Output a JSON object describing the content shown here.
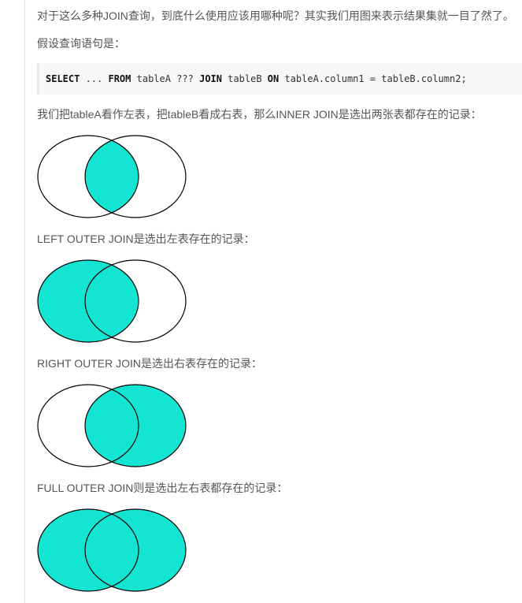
{
  "intro": {
    "line1": "对于这么多种JOIN查询，到底什么使用应该用哪种呢？其实我们用图来表示结果集就一目了然了。",
    "line2": "假设查询语句是："
  },
  "code": {
    "tokens": [
      {
        "text": "SELECT",
        "keyword": true
      },
      {
        "text": " ... ",
        "keyword": false
      },
      {
        "text": "FROM",
        "keyword": true
      },
      {
        "text": " tableA ??? ",
        "keyword": false
      },
      {
        "text": "JOIN",
        "keyword": true
      },
      {
        "text": " tableB ",
        "keyword": false
      },
      {
        "text": "ON",
        "keyword": true
      },
      {
        "text": " tableA.column1 = tableB.column2;",
        "keyword": false
      }
    ]
  },
  "sections": [
    {
      "caption": "我们把tableA看作左表，把tableB看成右表，那么INNER JOIN是选出两张表都存在的记录：",
      "fill": "inner"
    },
    {
      "caption": "LEFT OUTER JOIN是选出左表存在的记录：",
      "fill": "left"
    },
    {
      "caption": "RIGHT OUTER JOIN是选出右表存在的记录：",
      "fill": "right"
    },
    {
      "caption": "FULL OUTER JOIN则是选出左右表都存在的记录：",
      "fill": "full"
    }
  ],
  "colors": {
    "venn_fill": "#14e5d2",
    "venn_stroke": "#000000"
  }
}
